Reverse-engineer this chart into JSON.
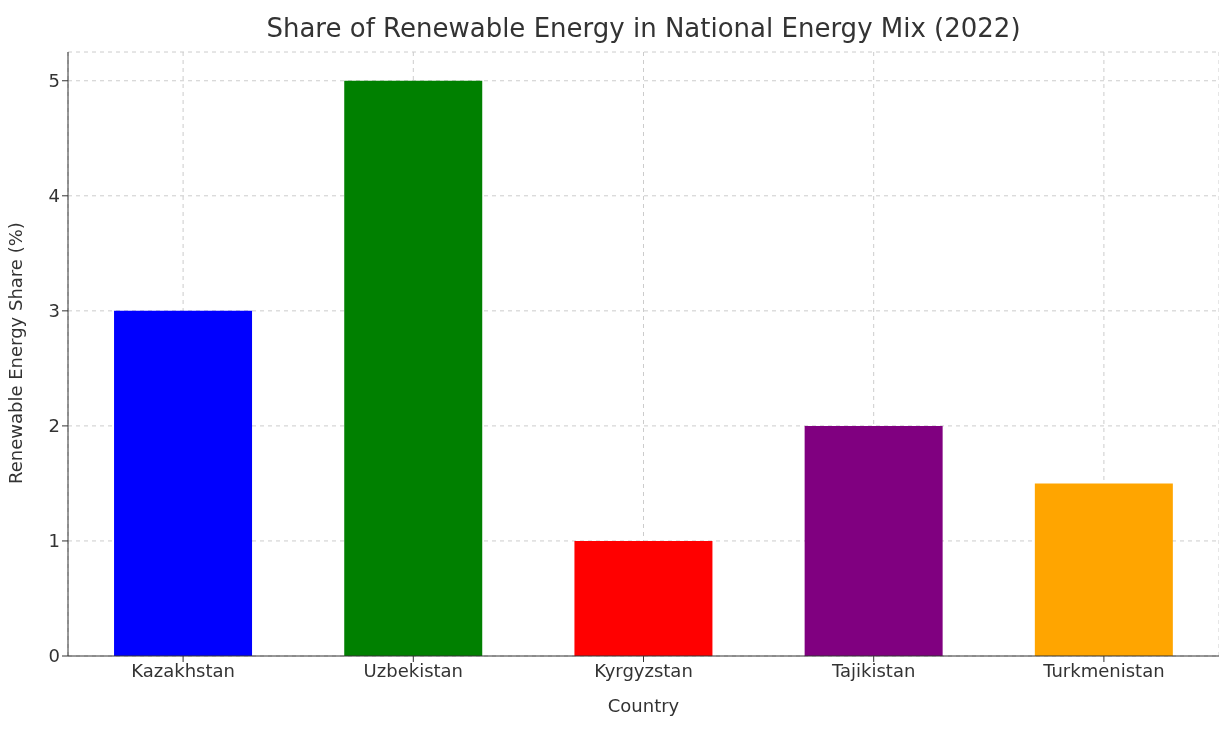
{
  "chart_data": {
    "type": "bar",
    "title": "Share of Renewable Energy in National Energy Mix (2022)",
    "xlabel": "Country",
    "ylabel": "Renewable Energy Share (%)",
    "categories": [
      "Kazakhstan",
      "Uzbekistan",
      "Kyrgyzstan",
      "Tajikistan",
      "Turkmenistan"
    ],
    "values": [
      3,
      5,
      1,
      2,
      1.5
    ],
    "colors": [
      "#0000ff",
      "#008000",
      "#ff0000",
      "#800080",
      "#ffa500"
    ],
    "ylim": [
      0,
      5.25
    ],
    "yticks": [
      0,
      1,
      2,
      3,
      4,
      5
    ],
    "grid": true
  }
}
